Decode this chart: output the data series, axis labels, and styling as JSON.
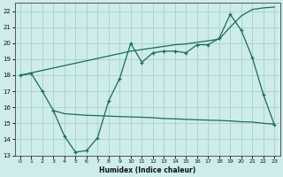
{
  "xlabel": "Humidex (Indice chaleur)",
  "xlim": [
    -0.5,
    23.5
  ],
  "ylim": [
    13,
    22.5
  ],
  "yticks": [
    13,
    14,
    15,
    16,
    17,
    18,
    19,
    20,
    21,
    22
  ],
  "xticks": [
    0,
    1,
    2,
    3,
    4,
    5,
    6,
    7,
    8,
    9,
    10,
    11,
    12,
    13,
    14,
    15,
    16,
    17,
    18,
    19,
    20,
    21,
    22,
    23
  ],
  "bg_color": "#ceecea",
  "line_color": "#1a6b5e",
  "grid_color": "#aad4d0",
  "line1_x": [
    0,
    1,
    2,
    3,
    4,
    5,
    6,
    7,
    8,
    9,
    10,
    11,
    12,
    13,
    14,
    15,
    16,
    17,
    18,
    19,
    20,
    21,
    22,
    23
  ],
  "line1_y": [
    18.0,
    18.1,
    17.0,
    15.8,
    14.2,
    13.2,
    13.3,
    14.1,
    16.4,
    17.8,
    20.0,
    18.8,
    19.4,
    19.5,
    19.5,
    19.4,
    19.9,
    19.9,
    20.3,
    21.8,
    20.8,
    19.1,
    16.8,
    14.9
  ],
  "line2_x": [
    0,
    1,
    2,
    3,
    4,
    5,
    6,
    7,
    8,
    9,
    10,
    11,
    12,
    13,
    14,
    15,
    16,
    17,
    18,
    19,
    20,
    21,
    22,
    23
  ],
  "line2_y": [
    18.0,
    18.15,
    18.3,
    18.45,
    18.6,
    18.75,
    18.9,
    19.05,
    19.2,
    19.35,
    19.5,
    19.6,
    19.7,
    19.8,
    19.9,
    19.95,
    20.05,
    20.15,
    20.25,
    21.0,
    21.7,
    22.1,
    22.2,
    22.25
  ],
  "line3_x": [
    3,
    4,
    5,
    6,
    7,
    8,
    9,
    10,
    11,
    12,
    13,
    14,
    15,
    16,
    17,
    18,
    19,
    20,
    21,
    22,
    23
  ],
  "line3_y": [
    15.8,
    15.6,
    15.55,
    15.5,
    15.48,
    15.45,
    15.42,
    15.4,
    15.38,
    15.35,
    15.3,
    15.28,
    15.25,
    15.22,
    15.2,
    15.18,
    15.15,
    15.1,
    15.08,
    15.0,
    14.95
  ]
}
